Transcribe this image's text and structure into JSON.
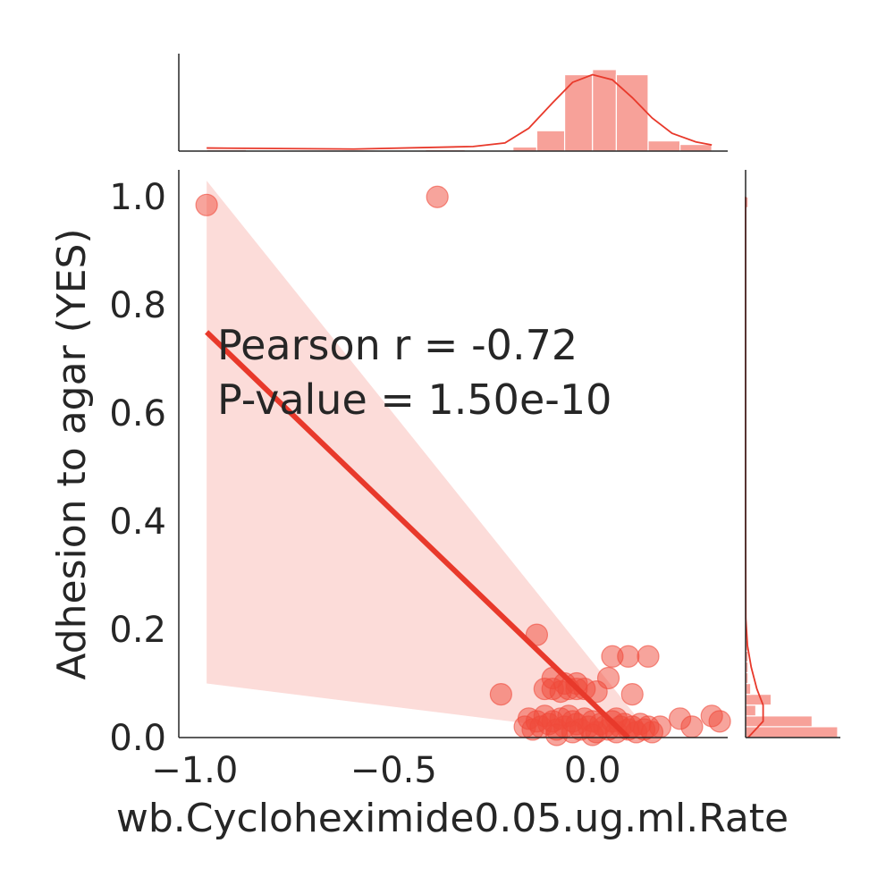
{
  "chart_data": {
    "type": "scatter",
    "title": "",
    "xlabel": "wb.Cycloheximide0.05.ug.ml.Rate",
    "ylabel": "Adhesion to agar (YES)",
    "xlim": [
      -1.04,
      0.34
    ],
    "ylim": [
      0.0,
      1.05
    ],
    "x_ticks": [
      -1.0,
      -0.5,
      0.0
    ],
    "x_tick_labels": [
      "−1.0",
      "−0.5",
      "0.0"
    ],
    "y_ticks": [
      0.0,
      0.2,
      0.4,
      0.6,
      0.8,
      1.0
    ],
    "y_tick_labels": [
      "0.0",
      "0.2",
      "0.4",
      "0.6",
      "0.8",
      "1.0"
    ],
    "grid": false,
    "annotation": {
      "line1": "Pearson r = -0.72",
      "line2": "P-value = 1.50e-10"
    },
    "colors": {
      "points": "#f0493a",
      "line": "#e8392b",
      "band": "#fcdcd9",
      "hist_bar": "#f7a199",
      "kde": "#e8392b",
      "axis": "#262626"
    },
    "points": [
      [
        -0.97,
        0.985
      ],
      [
        -0.39,
        1.0
      ],
      [
        -0.14,
        0.19
      ],
      [
        -0.23,
        0.08
      ],
      [
        -0.12,
        0.09
      ],
      [
        -0.1,
        0.09
      ],
      [
        -0.08,
        0.085
      ],
      [
        -0.06,
        0.09
      ],
      [
        -0.04,
        0.09
      ],
      [
        -0.02,
        0.09
      ],
      [
        0.01,
        0.085
      ],
      [
        -0.1,
        0.11
      ],
      [
        -0.07,
        0.1
      ],
      [
        0.04,
        0.11
      ],
      [
        -0.04,
        0.1
      ],
      [
        0.05,
        0.15
      ],
      [
        0.09,
        0.15
      ],
      [
        0.14,
        0.15
      ],
      [
        0.1,
        0.08
      ],
      [
        -0.17,
        0.02
      ],
      [
        -0.16,
        0.035
      ],
      [
        -0.15,
        0.015
      ],
      [
        -0.14,
        0.03
      ],
      [
        -0.13,
        0.02
      ],
      [
        -0.12,
        0.04
      ],
      [
        -0.11,
        0.025
      ],
      [
        -0.1,
        0.03
      ],
      [
        -0.09,
        0.015
      ],
      [
        -0.08,
        0.035
      ],
      [
        -0.07,
        0.02
      ],
      [
        -0.06,
        0.04
      ],
      [
        -0.05,
        0.03
      ],
      [
        -0.04,
        0.025
      ],
      [
        -0.03,
        0.015
      ],
      [
        -0.02,
        0.035
      ],
      [
        -0.01,
        0.02
      ],
      [
        0.0,
        0.03
      ],
      [
        0.01,
        0.01
      ],
      [
        0.02,
        0.025
      ],
      [
        0.03,
        0.02
      ],
      [
        0.04,
        0.015
      ],
      [
        0.05,
        0.03
      ],
      [
        0.06,
        0.01
      ],
      [
        0.07,
        0.02
      ],
      [
        0.08,
        0.025
      ],
      [
        0.09,
        0.015
      ],
      [
        0.1,
        0.02
      ],
      [
        0.11,
        0.01
      ],
      [
        0.12,
        0.025
      ],
      [
        0.13,
        0.015
      ],
      [
        0.14,
        0.02
      ],
      [
        0.15,
        0.01
      ],
      [
        0.17,
        0.02
      ],
      [
        0.22,
        0.035
      ],
      [
        0.25,
        0.02
      ],
      [
        0.3,
        0.04
      ],
      [
        0.32,
        0.03
      ],
      [
        -0.05,
        0.01
      ],
      [
        0.0,
        0.005
      ],
      [
        0.06,
        0.035
      ],
      [
        -0.09,
        0.005
      ]
    ],
    "regression": {
      "x": [
        -0.97,
        0.09
      ],
      "y": [
        0.75,
        0.0
      ]
    },
    "ci_band": {
      "x": [
        -0.97,
        0.12
      ],
      "upper": [
        1.03,
        0.03
      ],
      "lower": [
        0.1,
        0.0
      ]
    },
    "x_marginal": {
      "bins": [
        -0.97,
        -0.87,
        -0.42,
        -0.32,
        -0.2,
        -0.14,
        -0.07,
        0.0,
        0.06,
        0.14,
        0.22,
        0.3
      ],
      "counts": [
        0.3,
        0,
        0.3,
        0,
        0.8,
        4,
        15,
        16,
        15,
        2,
        1.3
      ],
      "kde": [
        [
          -0.97,
          0.6
        ],
        [
          -0.6,
          0.4
        ],
        [
          -0.3,
          0.9
        ],
        [
          -0.22,
          1.6
        ],
        [
          -0.16,
          4.5
        ],
        [
          -0.1,
          9.5
        ],
        [
          -0.05,
          13.5
        ],
        [
          0.0,
          15.0
        ],
        [
          0.05,
          14.0
        ],
        [
          0.1,
          10.5
        ],
        [
          0.15,
          6.5
        ],
        [
          0.2,
          3.5
        ],
        [
          0.26,
          1.8
        ],
        [
          0.3,
          1.2
        ]
      ]
    },
    "y_marginal": {
      "bins": [
        0.0,
        0.02,
        0.04,
        0.06,
        0.08,
        0.1,
        0.12,
        0.14,
        0.16,
        0.18,
        0.2,
        0.98,
        1.0
      ],
      "counts": [
        18,
        13,
        2,
        5,
        1,
        0.5,
        0.5,
        0.5,
        0.5,
        0.3,
        0,
        0.5
      ],
      "kde": [
        [
          0.0,
          0.2
        ],
        [
          0.01,
          0.6
        ],
        [
          0.03,
          1.4
        ],
        [
          0.06,
          1.4
        ],
        [
          0.09,
          0.9
        ],
        [
          0.13,
          0.45
        ],
        [
          0.17,
          0.15
        ],
        [
          0.22,
          0.02
        ],
        [
          0.4,
          0.0
        ],
        [
          1.0,
          0.0
        ]
      ]
    }
  }
}
